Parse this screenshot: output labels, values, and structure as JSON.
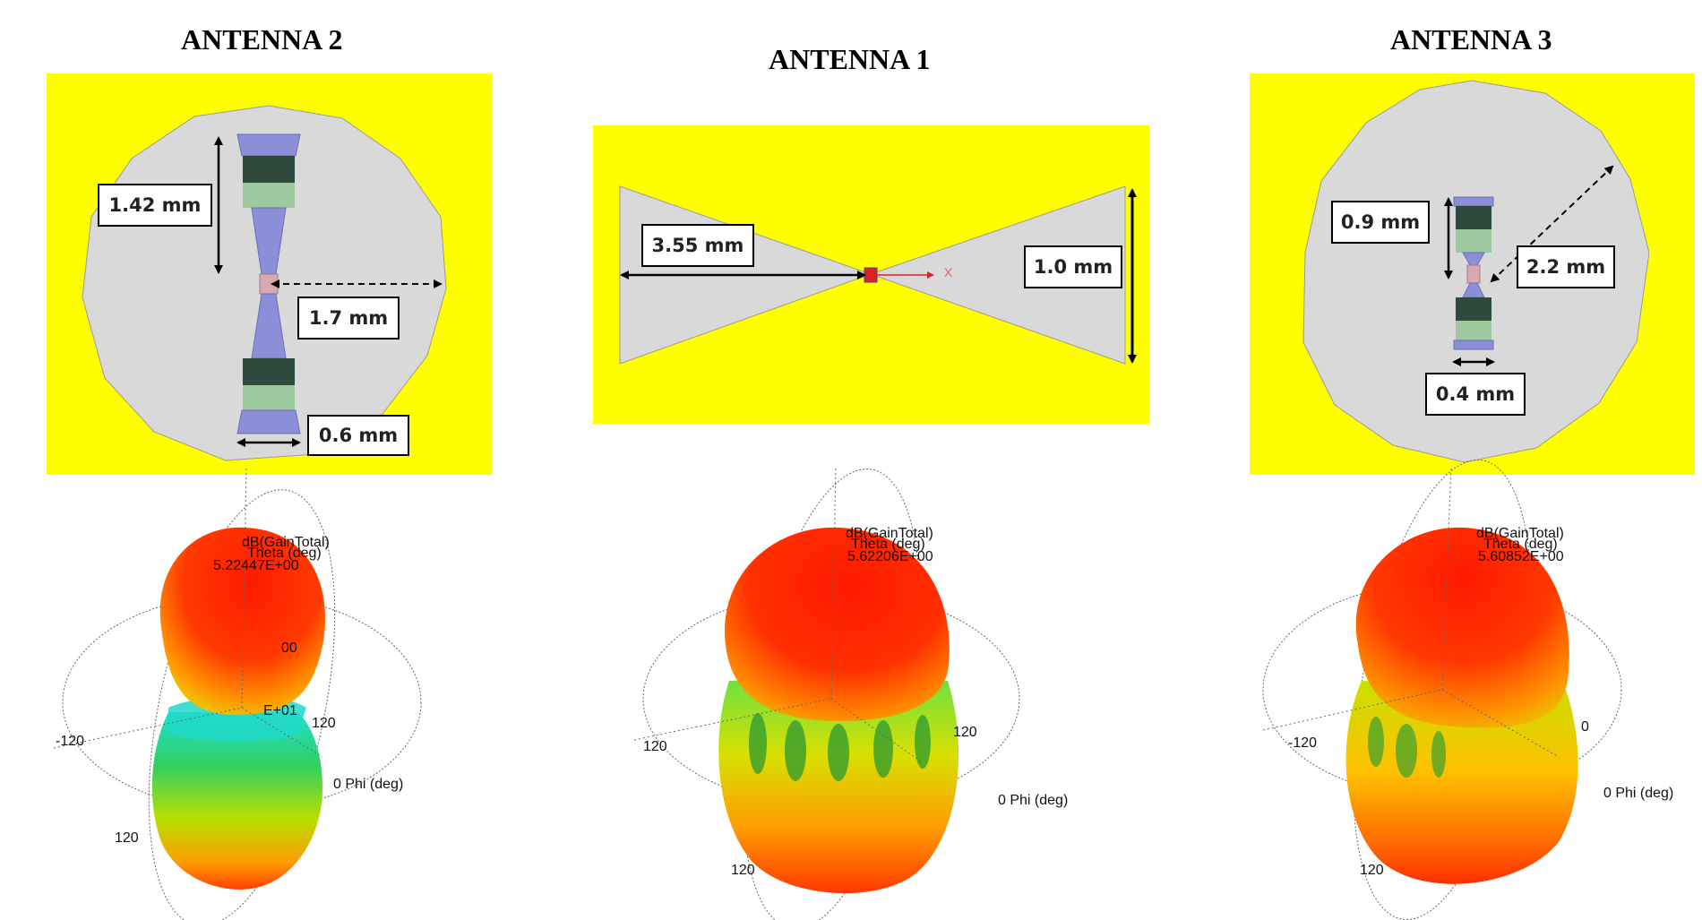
{
  "titles": {
    "antenna2": "ANTENNA 2",
    "antenna1": "ANTENNA 1",
    "antenna3": "ANTENNA 3"
  },
  "antenna2": {
    "dims": {
      "length": "1.42 mm",
      "radius": "1.7 mm",
      "width": "0.6 mm"
    },
    "pattern": {
      "title": "dB(GainTotal)",
      "theta": "Theta (deg)",
      "max": "5.22447E+00",
      "min": "E+01",
      "mid": "00",
      "neg120": "-120",
      "pos120": "120",
      "bottom120": "120",
      "phi": "0 Phi (deg)"
    }
  },
  "antenna1": {
    "dims": {
      "arm": "3.55 mm",
      "height": "1.0 mm"
    },
    "axis": "X",
    "pattern": {
      "title": "dB(GainTotal)",
      "theta": "Theta (deg)",
      "max": "5.62206E+00",
      "neg120": "120",
      "pos120": "120",
      "bottom120": "120",
      "phi": "0 Phi (deg)"
    }
  },
  "antenna3": {
    "dims": {
      "height": "0.9 mm",
      "radius": "2.2 mm",
      "width": "0.4 mm"
    },
    "pattern": {
      "title": "dB(GainTotal)",
      "theta": "Theta (deg)",
      "max": "5.60852E+00",
      "neg120": "-120",
      "zero": "0",
      "bottom120": "120",
      "phi": "0 Phi (deg)"
    }
  },
  "colors": {
    "background": "#ffff00",
    "substrate": "#d9d9d9",
    "element": "#8b8fd8",
    "lumped_dark": "#2f4a3c",
    "lumped_light": "#9ec89e"
  }
}
